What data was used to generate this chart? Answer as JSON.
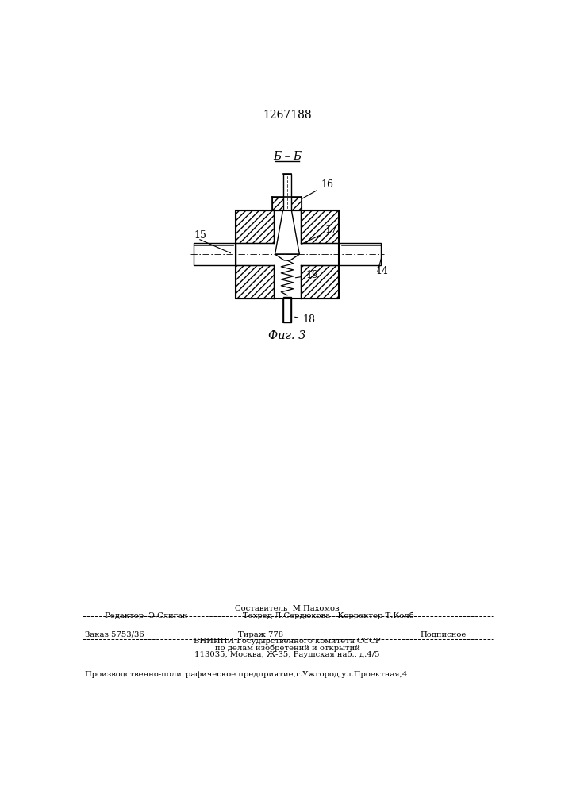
{
  "title": "1267188",
  "fig_label": "Фиг. 3",
  "section_label": "Б – Б",
  "footer_line1": "Составитель  М.Пахомов",
  "footer_line2_left": "Редактор  Э.Слиган",
  "footer_line2_right": "Техред Л.Сердюкова   Корректор Т.Колб",
  "footer_line3_left": "Заказ 5753/36",
  "footer_line3_mid": "Тираж 778",
  "footer_line3_right": "Подписное",
  "footer_line4": "ВНИИПИ Государственного комитета СССР",
  "footer_line5": "по делам изобретений и открытий",
  "footer_line6": "113035, Москва, Ж-35, Раушская наб., д.4/5",
  "footer_line7": "Производственно-полиграфическое предприятие,г.Ужгород,ул.Проектная,4",
  "line_color": "#000000",
  "bg_color": "#ffffff"
}
